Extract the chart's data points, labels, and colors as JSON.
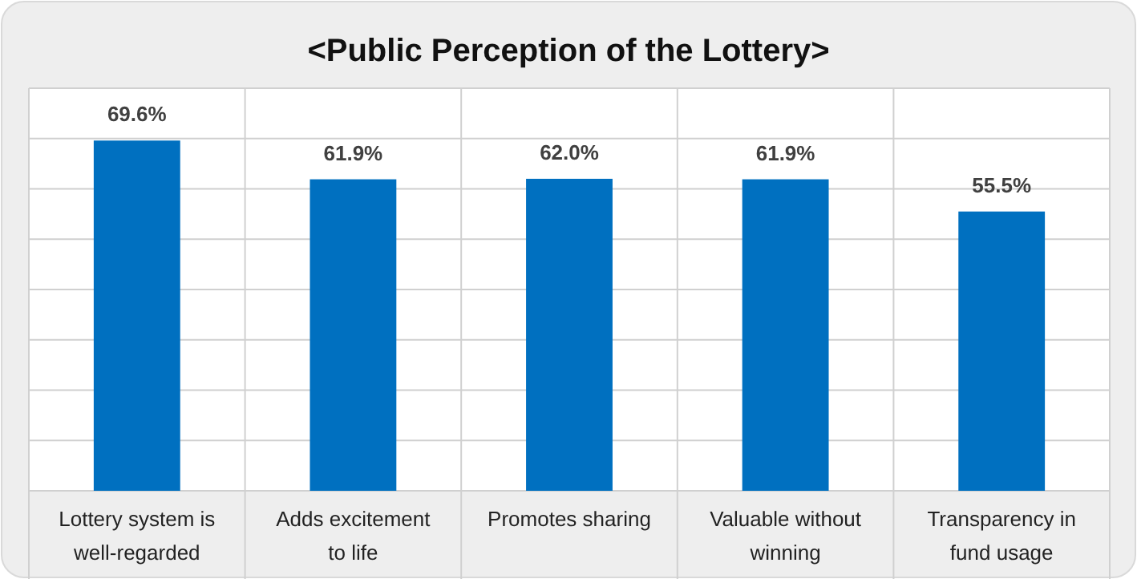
{
  "chart_data": {
    "type": "bar",
    "title": "<Public Perception of the Lottery>",
    "categories": [
      "Lottery system is well-regarded",
      "Adds excitement to life",
      "Promotes sharing",
      "Valuable without winning",
      "Transparency in fund usage"
    ],
    "values": [
      69.6,
      61.9,
      62.0,
      61.9,
      55.5
    ],
    "value_labels": [
      "69.6%",
      "61.9%",
      "62.0%",
      "61.9%",
      "55.5%"
    ],
    "color": "#0070c0",
    "ylim": [
      0,
      80
    ],
    "yticks": [
      {
        "value": 0,
        "label": null
      },
      {
        "value": 10,
        "label": null
      },
      {
        "value": 20,
        "label": null
      },
      {
        "value": 30,
        "label": null
      },
      {
        "value": 40,
        "label": null
      },
      {
        "value": 50,
        "label": null
      },
      {
        "value": 60,
        "label": null
      },
      {
        "value": 70,
        "label": null
      },
      {
        "value": 80,
        "label": null
      }
    ],
    "tick_labels": "x",
    "grid": true
  }
}
